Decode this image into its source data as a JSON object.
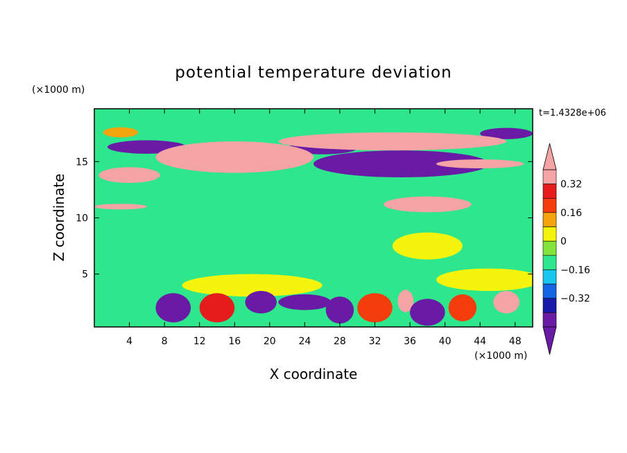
{
  "chart_data": {
    "type": "heatmap",
    "title": "potential temperature deviation",
    "xlabel": "X coordinate",
    "ylabel": "Z coordinate",
    "x_unit": "(×1000 m)",
    "y_unit": "(×1000 m)",
    "time_label": "t=1.4328e+06",
    "xlim": [
      0,
      50
    ],
    "ylim": [
      0.3,
      19.7
    ],
    "x_ticks": [
      4,
      8,
      12,
      16,
      20,
      24,
      28,
      32,
      36,
      40,
      44,
      48
    ],
    "y_ticks": [
      5,
      10,
      15
    ],
    "colorbar": {
      "levels": [
        -0.4,
        -0.32,
        -0.24,
        -0.16,
        -0.08,
        0,
        0.08,
        0.16,
        0.24,
        0.32,
        0.4
      ],
      "labeled_levels": [
        0.32,
        0.16,
        0,
        -0.16,
        -0.32
      ],
      "colors": [
        "#6a1ba6",
        "#1a1aa8",
        "#1464e6",
        "#18c8ee",
        "#2ee68c",
        "#84e43c",
        "#f4f40c",
        "#f4a40c",
        "#f43c0c",
        "#e41c1c",
        "#f4a4a4"
      ],
      "over_color": "#f4a4a4",
      "under_color": "#6a1ba6"
    },
    "features": [
      {
        "type": "ellipse",
        "x": 6,
        "z": 16.3,
        "rx": 4.5,
        "rz": 0.6,
        "value": -0.45
      },
      {
        "type": "ellipse",
        "x": 26,
        "z": 16.2,
        "rx": 4,
        "rz": 0.55,
        "value": -0.4
      },
      {
        "type": "ellipse",
        "x": 35,
        "z": 14.8,
        "rx": 10,
        "rz": 1.2,
        "value": -0.45
      },
      {
        "type": "ellipse",
        "x": 47,
        "z": 17.5,
        "rx": 3,
        "rz": 0.5,
        "value": -0.4
      },
      {
        "type": "ellipse",
        "x": 3,
        "z": 17.6,
        "rx": 2,
        "rz": 0.45,
        "value": 0.2
      },
      {
        "type": "ellipse",
        "x": 16,
        "z": 15.4,
        "rx": 9,
        "rz": 1.4,
        "value": 0.45
      },
      {
        "type": "ellipse",
        "x": 34,
        "z": 16.8,
        "rx": 13,
        "rz": 0.8,
        "value": 0.45
      },
      {
        "type": "ellipse",
        "x": 4,
        "z": 13.8,
        "rx": 3.5,
        "rz": 0.7,
        "value": 0.45
      },
      {
        "type": "ellipse",
        "x": 44,
        "z": 14.8,
        "rx": 5,
        "rz": 0.4,
        "value": 0.4
      },
      {
        "type": "ellipse",
        "x": 38,
        "z": 11.2,
        "rx": 5,
        "rz": 0.7,
        "value": 0.45
      },
      {
        "type": "ellipse",
        "x": 3,
        "z": 11,
        "rx": 3,
        "rz": 0.25,
        "value": 0.4
      },
      {
        "type": "ellipse",
        "x": 18,
        "z": 4,
        "rx": 8,
        "rz": 1,
        "value": 0.1
      },
      {
        "type": "ellipse",
        "x": 45,
        "z": 4.5,
        "rx": 6,
        "rz": 1,
        "value": 0.1
      },
      {
        "type": "ellipse",
        "x": 38,
        "z": 7.5,
        "rx": 4,
        "rz": 1.2,
        "value": 0.08
      },
      {
        "type": "ellipse",
        "x": 9,
        "z": 2,
        "rx": 2,
        "rz": 1.3,
        "value": -0.45
      },
      {
        "type": "ellipse",
        "x": 14,
        "z": 2,
        "rx": 2,
        "rz": 1.3,
        "value": 0.35
      },
      {
        "type": "ellipse",
        "x": 19,
        "z": 2.5,
        "rx": 1.8,
        "rz": 1,
        "value": -0.4
      },
      {
        "type": "ellipse",
        "x": 24,
        "z": 2.5,
        "rx": 3,
        "rz": 0.7,
        "value": -0.45
      },
      {
        "type": "ellipse",
        "x": 28,
        "z": 1.8,
        "rx": 1.6,
        "rz": 1.2,
        "value": -0.35
      },
      {
        "type": "ellipse",
        "x": 32,
        "z": 2,
        "rx": 2,
        "rz": 1.3,
        "value": 0.3
      },
      {
        "type": "ellipse",
        "x": 35.5,
        "z": 2.6,
        "rx": 0.9,
        "rz": 1,
        "value": 0.45
      },
      {
        "type": "ellipse",
        "x": 38,
        "z": 1.6,
        "rx": 2,
        "rz": 1.2,
        "value": -0.45
      },
      {
        "type": "ellipse",
        "x": 42,
        "z": 2,
        "rx": 1.6,
        "rz": 1.2,
        "value": 0.3
      },
      {
        "type": "ellipse",
        "x": 47,
        "z": 2.5,
        "rx": 1.5,
        "rz": 1,
        "value": 0.45
      }
    ]
  }
}
